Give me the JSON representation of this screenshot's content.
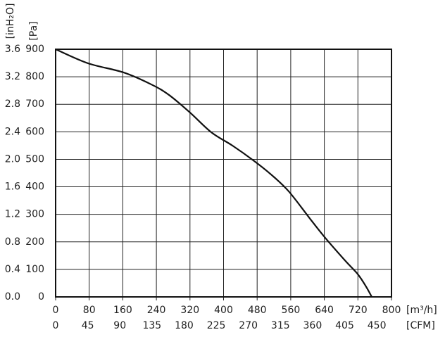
{
  "chart_data": {
    "type": "line",
    "x": [
      0,
      77,
      161,
      228,
      270,
      320,
      371,
      421,
      471,
      513,
      555,
      605,
      642,
      689,
      720,
      740,
      753
    ],
    "values": [
      900,
      849,
      816,
      772,
      734,
      670,
      598,
      550,
      496,
      445,
      384,
      286,
      215,
      133,
      82,
      36,
      0
    ],
    "color": "#111111",
    "xlim": [
      0,
      800
    ],
    "xticks": [
      0,
      80,
      160,
      240,
      320,
      400,
      480,
      560,
      640,
      720,
      800
    ],
    "ylim": [
      0,
      900
    ],
    "yticks": [
      0,
      100,
      200,
      300,
      400,
      500,
      600,
      700,
      800,
      900
    ],
    "x2lim": [
      0,
      470.6
    ],
    "x2ticks": [
      0,
      45,
      90,
      135,
      180,
      225,
      270,
      315,
      360,
      405,
      450
    ],
    "y2lim": [
      0,
      3.6
    ],
    "y2ticks": [
      {
        "value": 0,
        "label": "0.0"
      },
      0.4,
      0.8,
      1.2,
      1.6,
      {
        "value": 2,
        "label": "2.0"
      },
      2.4,
      2.8,
      3.2,
      3.6
    ],
    "xlabel": "[m³/h]",
    "x2label": "[CFM]",
    "ylabel": "[Pa]",
    "y2label": "[inH₂O]",
    "grid": true
  }
}
